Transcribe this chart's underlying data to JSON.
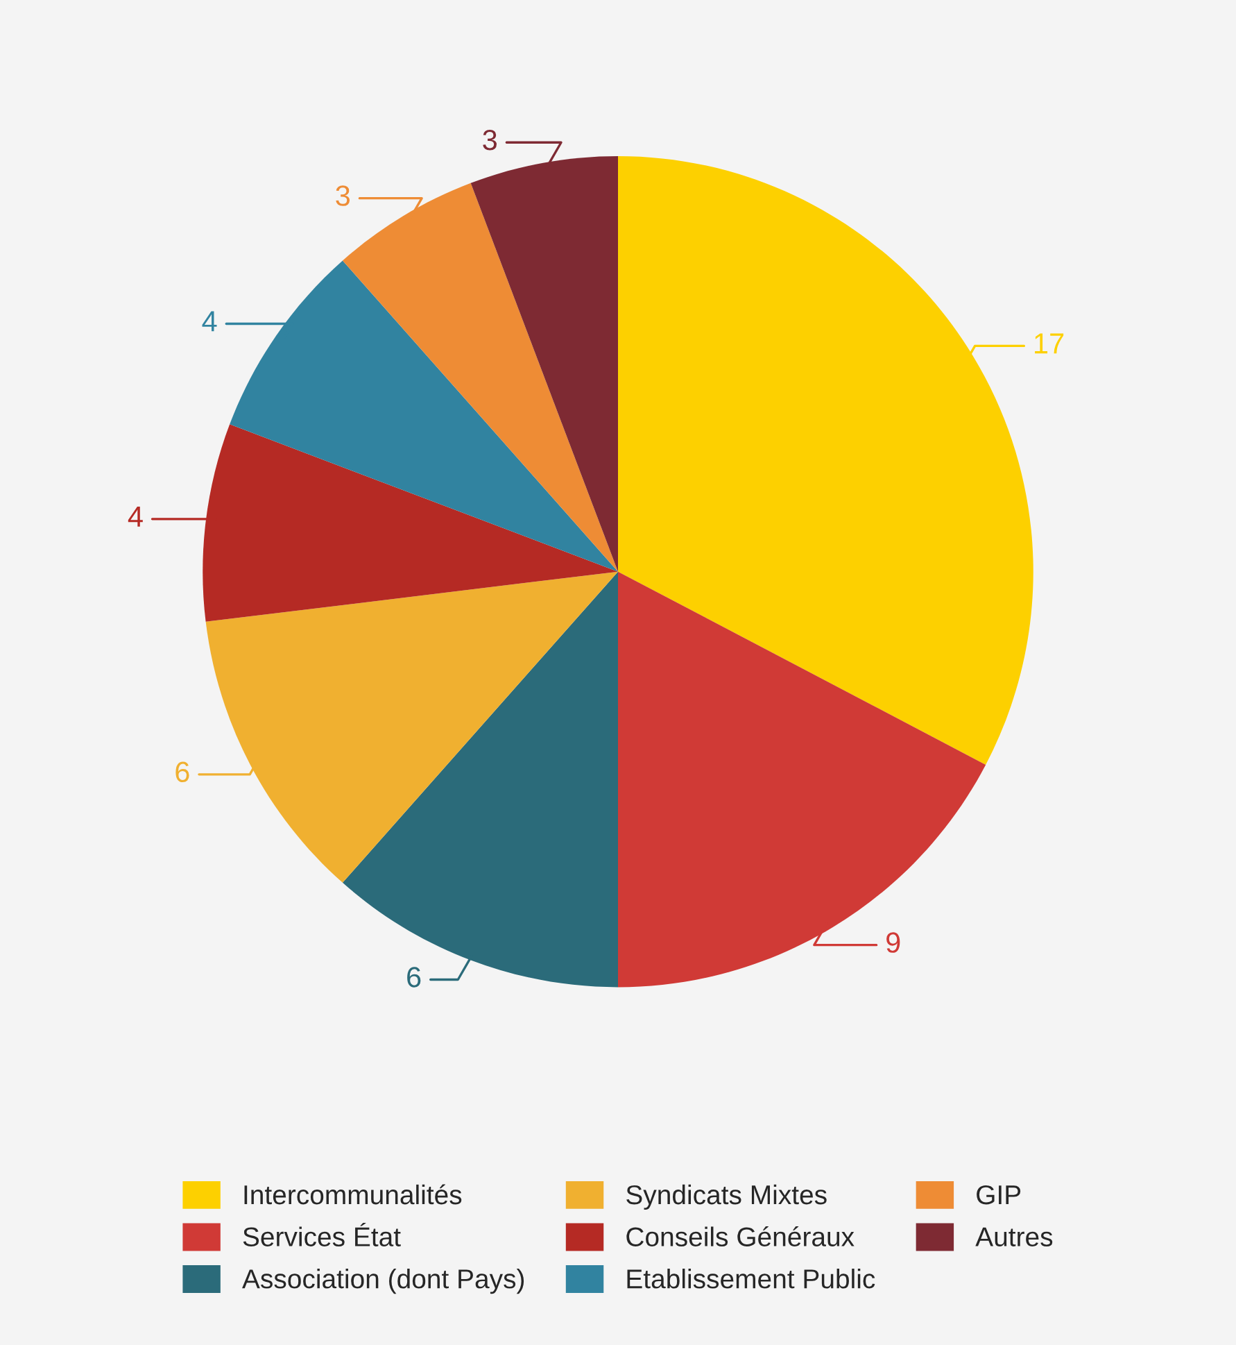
{
  "chart_data": {
    "type": "pie",
    "categories": [
      "Intercommunalités",
      "Services État",
      "Association (dont Pays)",
      "Syndicats Mixtes",
      "Conseils Généraux",
      "Etablissement Public",
      "GIP",
      "Autres"
    ],
    "values": [
      17,
      9,
      6,
      6,
      4,
      4,
      3,
      3
    ],
    "colors": [
      "#fdd000",
      "#d03a36",
      "#2b6b7a",
      "#f0b030",
      "#b52a24",
      "#3183a0",
      "#ee8c35",
      "#7e2a33"
    ],
    "data_labels": true,
    "legend": "bottom"
  }
}
